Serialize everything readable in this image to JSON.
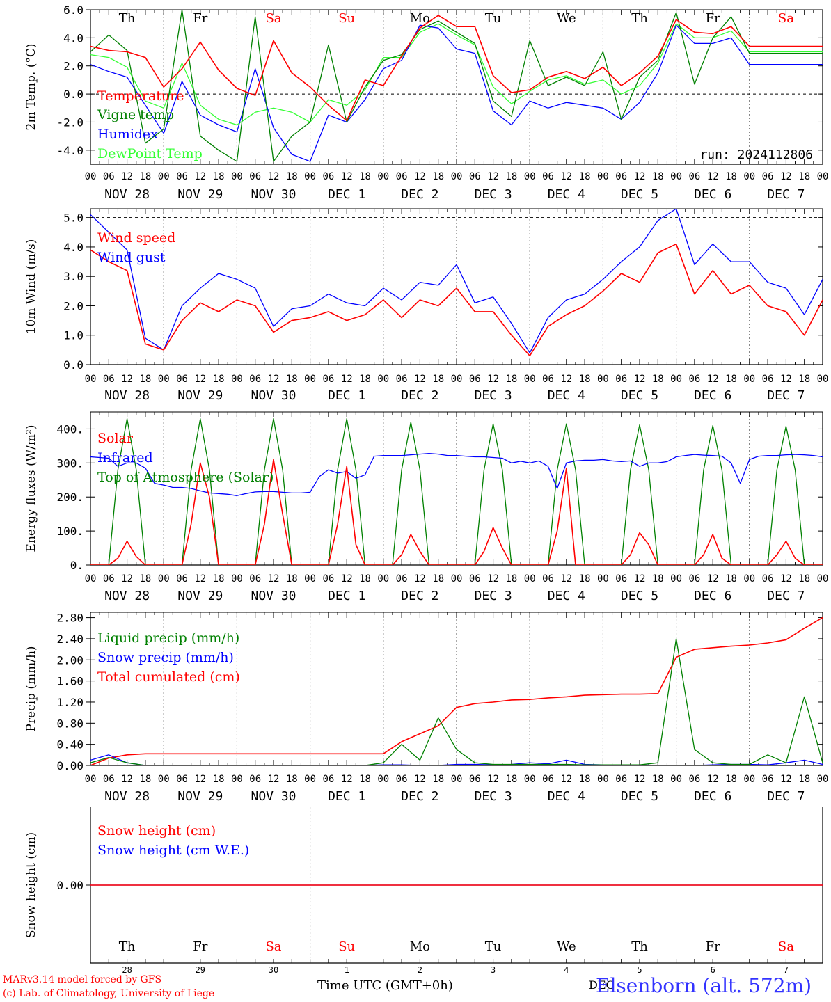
{
  "colors": {
    "red": "#ff0000",
    "green": "#008000",
    "blue": "#0000ff",
    "lightgreen": "#33ff33",
    "axis": "#000000",
    "grid": "#555555"
  },
  "x_axis": {
    "hour_labels": [
      "00",
      "06",
      "12",
      "18"
    ],
    "end_label": "00",
    "date_labels": [
      "NOV 28",
      "NOV 29",
      "NOV 30",
      "DEC  1",
      "DEC  2",
      "DEC  3",
      "DEC  4",
      "DEC  5",
      "DEC  6",
      "DEC  7"
    ],
    "weekdays": [
      {
        "label": "Th",
        "color": "black"
      },
      {
        "label": "Fr",
        "color": "black"
      },
      {
        "label": "Sa",
        "color": "red"
      },
      {
        "label": "Su",
        "color": "red"
      },
      {
        "label": "Mo",
        "color": "black"
      },
      {
        "label": "Tu",
        "color": "black"
      },
      {
        "label": "We",
        "color": "black"
      },
      {
        "label": "Th",
        "color": "black"
      },
      {
        "label": "Fr",
        "color": "black"
      },
      {
        "label": "Sa",
        "color": "red"
      }
    ],
    "day_numbers": [
      "28",
      "29",
      "30",
      "1",
      "2",
      "3",
      "4",
      "5",
      "6",
      "7"
    ],
    "month_label": "DEC",
    "title": "Time UTC (GMT+0h)"
  },
  "footer": {
    "credit_line1": "MARv3.14 model forced by GFS",
    "credit_line2": "(c) Lab. of Climatology, University of Liege",
    "station": "Elsenborn (alt. 572m)"
  },
  "chart_data": [
    {
      "type": "line",
      "ylabel": "2m Temp. (°C)",
      "ylim": [
        -5,
        6
      ],
      "yticks": [
        "6.0",
        "4.0",
        "2.0",
        "0.0",
        "-2.0",
        "-4.0"
      ],
      "annotation": "run: 2024112806",
      "x_hours": [
        0,
        6,
        12,
        18,
        24,
        30,
        36,
        42,
        48,
        54,
        60,
        66,
        72,
        78,
        84,
        90,
        96,
        102,
        108,
        114,
        120,
        126,
        132,
        138,
        144,
        150,
        156,
        162,
        168,
        174,
        180,
        186,
        192,
        198,
        204,
        210,
        216,
        222,
        228,
        234,
        240
      ],
      "series": [
        {
          "name": "Temperature",
          "color": "red",
          "values": [
            3.4,
            3.1,
            3.0,
            2.6,
            0.5,
            1.8,
            3.7,
            1.7,
            0.4,
            -0.1,
            3.8,
            1.5,
            0.5,
            -0.8,
            -1.9,
            1.0,
            0.6,
            2.7,
            4.7,
            5.6,
            4.8,
            4.8,
            1.3,
            0.1,
            0.3,
            1.2,
            1.6,
            1.1,
            1.9,
            0.6,
            1.5,
            2.7,
            5.3,
            4.4,
            4.3,
            4.8,
            3.4,
            3.4,
            3.4,
            3.4,
            3.4
          ]
        },
        {
          "name": "Vigne temp",
          "color": "green",
          "values": [
            3.0,
            4.2,
            3.1,
            -3.5,
            -2.5,
            6.0,
            -3.0,
            -4.0,
            -4.8,
            5.5,
            -4.8,
            -3.0,
            -2.0,
            3.5,
            -2.0,
            0.5,
            2.4,
            2.8,
            4.6,
            5.2,
            4.4,
            3.6,
            -0.5,
            -1.6,
            3.8,
            0.6,
            1.2,
            0.6,
            3.0,
            -1.8,
            1.2,
            2.4,
            5.8,
            0.7,
            4.0,
            5.5,
            2.9,
            2.9,
            2.9,
            2.9,
            2.9
          ]
        },
        {
          "name": "Humidex",
          "color": "blue",
          "values": [
            2.1,
            1.6,
            1.2,
            -0.8,
            -2.8,
            0.9,
            -1.5,
            -2.2,
            -2.7,
            1.8,
            -2.4,
            -4.3,
            -4.8,
            -1.5,
            -2.0,
            -0.4,
            1.8,
            2.4,
            4.9,
            4.7,
            3.2,
            2.9,
            -1.2,
            -2.2,
            -0.5,
            -1.0,
            -0.6,
            -0.8,
            -1.0,
            -1.8,
            -0.6,
            1.5,
            4.9,
            3.6,
            3.6,
            4.0,
            2.1,
            2.1,
            2.1,
            2.1,
            2.1
          ]
        },
        {
          "name": "DewPoint Temp",
          "color": "lightgreen",
          "values": [
            2.8,
            2.6,
            1.9,
            -0.5,
            -1.0,
            2.2,
            -0.8,
            -1.8,
            -2.2,
            -1.3,
            -1.0,
            -1.3,
            -2.0,
            -0.4,
            -0.8,
            0.3,
            2.6,
            2.6,
            4.4,
            5.0,
            4.2,
            3.5,
            0.5,
            -0.7,
            0.2,
            1.0,
            1.3,
            0.7,
            1.0,
            0.0,
            0.6,
            2.2,
            5.0,
            4.0,
            4.0,
            4.5,
            3.0,
            3.0,
            3.0,
            3.0,
            3.0
          ]
        }
      ]
    },
    {
      "type": "line",
      "ylabel": "10m Wind (m/s)",
      "ylim": [
        0,
        5.3
      ],
      "yticks": [
        "5.0",
        "4.0",
        "3.0",
        "2.0",
        "1.0",
        "0.0"
      ],
      "x_hours": [
        0,
        6,
        12,
        18,
        24,
        30,
        36,
        42,
        48,
        54,
        60,
        66,
        72,
        78,
        84,
        90,
        96,
        102,
        108,
        114,
        120,
        126,
        132,
        138,
        144,
        150,
        156,
        162,
        168,
        174,
        180,
        186,
        192,
        198,
        204,
        210,
        216,
        222,
        228,
        234,
        240
      ],
      "series": [
        {
          "name": "Wind speed",
          "color": "red",
          "values": [
            3.9,
            3.5,
            3.2,
            0.7,
            0.5,
            1.5,
            2.1,
            1.8,
            2.2,
            2.0,
            1.1,
            1.5,
            1.6,
            1.8,
            1.5,
            1.7,
            2.2,
            1.6,
            2.2,
            2.0,
            2.6,
            1.8,
            1.8,
            1.0,
            0.3,
            1.3,
            1.7,
            2.0,
            2.5,
            3.1,
            2.8,
            3.8,
            4.1,
            2.4,
            3.2,
            2.4,
            2.7,
            2.0,
            1.8,
            1.0,
            2.2
          ]
        },
        {
          "name": "Wind gust",
          "color": "blue",
          "values": [
            5.1,
            4.5,
            3.9,
            0.9,
            0.5,
            2.0,
            2.6,
            3.1,
            2.9,
            2.6,
            1.3,
            1.9,
            2.0,
            2.4,
            2.1,
            2.0,
            2.6,
            2.2,
            2.8,
            2.7,
            3.4,
            2.1,
            2.3,
            1.4,
            0.4,
            1.6,
            2.2,
            2.4,
            2.9,
            3.5,
            4.0,
            4.9,
            5.3,
            3.4,
            4.1,
            3.5,
            3.5,
            2.8,
            2.6,
            1.7,
            2.9
          ]
        }
      ]
    },
    {
      "type": "line",
      "ylabel": "Energy fluxes (W/m²)",
      "ylim": [
        0,
        450
      ],
      "yticks": [
        "400.",
        "300.",
        "200.",
        "100.",
        "0."
      ],
      "x_hours": [
        0,
        3,
        6,
        9,
        12,
        15,
        18,
        21,
        24,
        27,
        30,
        33,
        36,
        39,
        42,
        45,
        48,
        51,
        54,
        57,
        60,
        63,
        66,
        69,
        72,
        75,
        78,
        81,
        84,
        87,
        90,
        93,
        96,
        99,
        102,
        105,
        108,
        111,
        114,
        117,
        120,
        123,
        126,
        129,
        132,
        135,
        138,
        141,
        144,
        147,
        150,
        153,
        156,
        159,
        162,
        165,
        168,
        171,
        174,
        177,
        180,
        183,
        186,
        189,
        192,
        195,
        198,
        201,
        204,
        207,
        210,
        213,
        216,
        219,
        222,
        225,
        228,
        231,
        234,
        237,
        240
      ],
      "series": [
        {
          "name": "Solar",
          "color": "red",
          "values": [
            0,
            0,
            0,
            20,
            70,
            25,
            0,
            0,
            0,
            0,
            0,
            120,
            300,
            200,
            0,
            0,
            0,
            0,
            0,
            120,
            310,
            150,
            0,
            0,
            0,
            0,
            0,
            120,
            290,
            60,
            0,
            0,
            0,
            0,
            30,
            90,
            40,
            0,
            0,
            0,
            0,
            0,
            0,
            40,
            110,
            50,
            0,
            0,
            0,
            0,
            0,
            100,
            285,
            0,
            0,
            0,
            0,
            0,
            0,
            30,
            95,
            60,
            0,
            0,
            0,
            0,
            0,
            30,
            90,
            20,
            0,
            0,
            0,
            0,
            0,
            30,
            70,
            20,
            0,
            0,
            0
          ]
        },
        {
          "name": "Infrared",
          "color": "blue",
          "values": [
            318,
            316,
            314,
            290,
            300,
            300,
            285,
            240,
            235,
            228,
            228,
            225,
            218,
            212,
            210,
            208,
            204,
            210,
            215,
            216,
            216,
            214,
            212,
            212,
            214,
            260,
            280,
            270,
            275,
            255,
            265,
            320,
            322,
            322,
            322,
            324,
            326,
            328,
            326,
            322,
            322,
            320,
            318,
            318,
            316,
            314,
            300,
            305,
            300,
            306,
            290,
            225,
            300,
            306,
            308,
            308,
            310,
            306,
            304,
            306,
            290,
            300,
            300,
            304,
            318,
            322,
            325,
            323,
            322,
            320,
            300,
            240,
            310,
            320,
            322,
            322,
            324,
            325,
            324,
            322,
            318
          ]
        },
        {
          "name": "Top of Atmosphere (Solar)",
          "color": "green",
          "values": [
            0,
            0,
            0,
            280,
            430,
            280,
            0,
            0,
            0,
            0,
            0,
            280,
            430,
            280,
            0,
            0,
            0,
            0,
            0,
            280,
            430,
            280,
            0,
            0,
            0,
            0,
            0,
            280,
            430,
            280,
            0,
            0,
            0,
            0,
            280,
            420,
            280,
            0,
            0,
            0,
            0,
            0,
            0,
            280,
            415,
            280,
            0,
            0,
            0,
            0,
            0,
            280,
            415,
            280,
            0,
            0,
            0,
            0,
            0,
            280,
            412,
            280,
            0,
            0,
            0,
            0,
            0,
            280,
            410,
            280,
            0,
            0,
            0,
            0,
            0,
            280,
            408,
            280,
            0,
            0,
            0
          ]
        }
      ]
    },
    {
      "type": "line",
      "ylabel": "Precip (mm/h)",
      "ylim": [
        0,
        2.9
      ],
      "yticks": [
        "2.80",
        "2.40",
        "2.00",
        "1.60",
        "1.20",
        "0.80",
        "0.40",
        "0.00"
      ],
      "x_hours": [
        0,
        6,
        12,
        18,
        24,
        30,
        36,
        42,
        48,
        54,
        60,
        66,
        72,
        78,
        84,
        90,
        96,
        102,
        108,
        114,
        120,
        126,
        132,
        138,
        144,
        150,
        156,
        162,
        168,
        174,
        180,
        186,
        192,
        198,
        204,
        210,
        216,
        222,
        228,
        234,
        240
      ],
      "series": [
        {
          "name": "Liquid precip (mm/h)",
          "color": "green",
          "values": [
            0.05,
            0.15,
            0.05,
            0,
            0,
            0,
            0,
            0,
            0,
            0,
            0,
            0,
            0,
            0,
            0,
            0,
            0.05,
            0.4,
            0.1,
            0.9,
            0.3,
            0.05,
            0.02,
            0.02,
            0.02,
            0.02,
            0.02,
            0.01,
            0.01,
            0.01,
            0.01,
            0.05,
            2.4,
            0.3,
            0.05,
            0.02,
            0.02,
            0.2,
            0.05,
            1.3,
            0.05
          ]
        },
        {
          "name": "Snow precip (mm/h)",
          "color": "blue",
          "values": [
            0.1,
            0.2,
            0.05,
            0,
            0,
            0,
            0,
            0,
            0,
            0,
            0,
            0,
            0,
            0,
            0,
            0,
            0.01,
            0.01,
            0,
            0,
            0.02,
            0.02,
            0.01,
            0.02,
            0.05,
            0.03,
            0.1,
            0.02,
            0.01,
            0.01,
            0.01,
            0,
            0,
            0,
            0.01,
            0.02,
            0.02,
            0.01,
            0.05,
            0.1,
            0.02
          ]
        },
        {
          "name": "Total cumulated (cm)",
          "color": "red",
          "values": [
            0.0,
            0.14,
            0.2,
            0.22,
            0.22,
            0.22,
            0.22,
            0.22,
            0.22,
            0.22,
            0.22,
            0.22,
            0.22,
            0.22,
            0.22,
            0.22,
            0.22,
            0.45,
            0.6,
            0.75,
            1.1,
            1.17,
            1.2,
            1.24,
            1.25,
            1.28,
            1.3,
            1.33,
            1.34,
            1.35,
            1.35,
            1.36,
            2.05,
            2.2,
            2.23,
            2.26,
            2.28,
            2.32,
            2.38,
            2.6,
            2.8
          ]
        }
      ]
    },
    {
      "type": "line",
      "ylabel": "Snow height (cm)",
      "ylim": [
        -1,
        1
      ],
      "yticks": [
        "0.00"
      ],
      "x_hours": [
        0,
        240
      ],
      "series": [
        {
          "name": "Snow height (cm)",
          "color": "red",
          "values": [
            0,
            0
          ]
        },
        {
          "name": "Snow height (cm W.E.)",
          "color": "blue",
          "values": [
            0,
            0
          ]
        }
      ]
    }
  ]
}
